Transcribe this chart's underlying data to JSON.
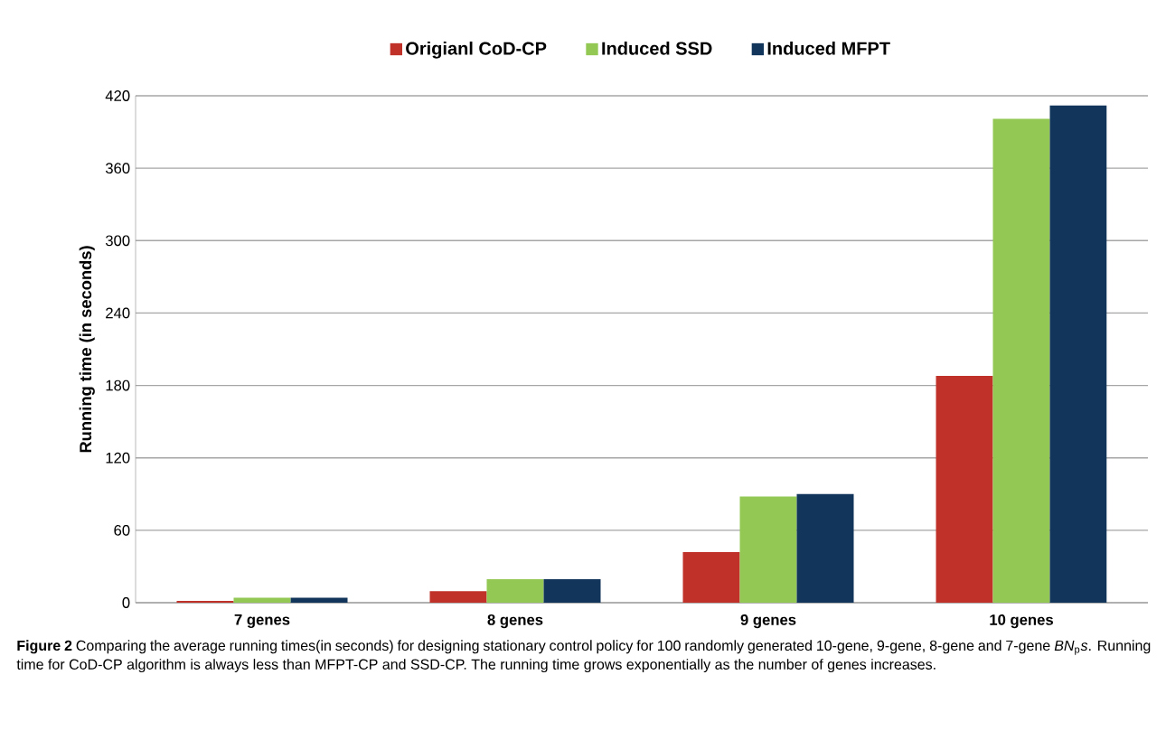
{
  "chart_data": {
    "type": "bar",
    "ylabel": "Running time (in seconds)",
    "categories": [
      "7 genes",
      "8 genes",
      "9 genes",
      "10 genes"
    ],
    "series": [
      {
        "name": "Origianl CoD-CP",
        "color": "#c0312a",
        "values": [
          1.5,
          9.6,
          42,
          188
        ]
      },
      {
        "name": "Induced SSD",
        "color": "#92c853",
        "values": [
          4.2,
          19.5,
          88,
          401
        ]
      },
      {
        "name": "Induced MFPT",
        "color": "#12355b",
        "values": [
          4.2,
          19.5,
          90,
          412
        ]
      }
    ],
    "ylim": [
      0,
      420
    ],
    "yticks": [
      0,
      60,
      120,
      180,
      240,
      300,
      360,
      420
    ],
    "grid": "y",
    "legend": "top",
    "annotations": [
      "**Figure 2** Comparing the average running times(in seconds) for designing stationary control policy for 100 randomly generated 10-gene, 9-gene, 8-gene and 7-gene *BN*$_{p}$*s*. Running time for CoD-CP algorithm is always less than MFPT-CP and SSD-CP. The running time grows exponentially as the number of genes increases."
    ]
  }
}
